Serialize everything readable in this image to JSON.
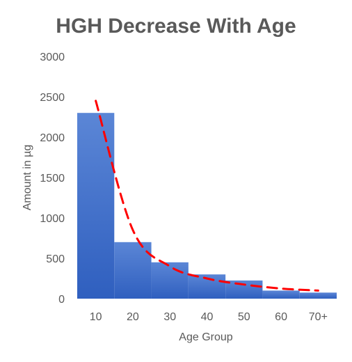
{
  "chart_data": {
    "type": "bar",
    "title": "HGH Decrease With Age",
    "xlabel": "Age Group",
    "ylabel": "Amount in µg",
    "categories": [
      "10",
      "20",
      "30",
      "40",
      "50",
      "60",
      "70+"
    ],
    "values": [
      2300,
      700,
      450,
      300,
      225,
      100,
      75
    ],
    "ylim": [
      0,
      3000
    ],
    "yticks": [
      "0",
      "500",
      "1000",
      "1500",
      "2000",
      "2500",
      "3000"
    ],
    "trendline": {
      "style": "dashed",
      "color": "#ff0000",
      "x": [
        "10",
        "20",
        "30",
        "40",
        "50",
        "60",
        "70+"
      ],
      "y": [
        2450,
        850,
        400,
        250,
        175,
        125,
        100
      ]
    },
    "bar_color": "#3f6fc6",
    "grid": false,
    "legend": "none"
  }
}
